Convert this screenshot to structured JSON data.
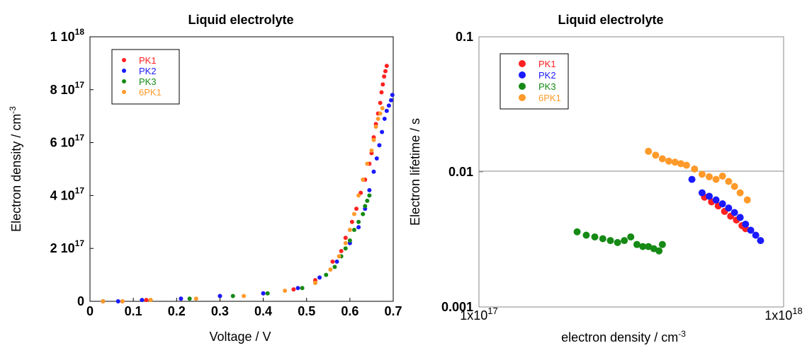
{
  "chart_data": [
    {
      "type": "scatter",
      "title": "Liquid electrolyte",
      "xlabel": "Voltage / V",
      "ylabel": "Electron density / cm",
      "ylabel_sup": "-3",
      "xlim": [
        0,
        0.7
      ],
      "ylim": [
        0,
        1e+18
      ],
      "x_ticks": [
        {
          "value": 0,
          "label": "0"
        },
        {
          "value": 0.1,
          "label": "0.1"
        },
        {
          "value": 0.2,
          "label": "0.2"
        },
        {
          "value": 0.3,
          "label": "0.3"
        },
        {
          "value": 0.4,
          "label": "0.4"
        },
        {
          "value": 0.5,
          "label": "0.5"
        },
        {
          "value": 0.6,
          "label": "0.6"
        },
        {
          "value": 0.7,
          "label": "0.7"
        }
      ],
      "y_ticks": [
        {
          "value": 0,
          "mant": "0",
          "exp": ""
        },
        {
          "value": 2e+17,
          "mant": "2 10",
          "exp": "17"
        },
        {
          "value": 4e+17,
          "mant": "4 10",
          "exp": "17"
        },
        {
          "value": 6e+17,
          "mant": "6 10",
          "exp": "17"
        },
        {
          "value": 8e+17,
          "mant": "8 10",
          "exp": "17"
        },
        {
          "value": 1e+18,
          "mant": "1 10",
          "exp": "18"
        }
      ],
      "legend_position": "top-left",
      "series": [
        {
          "name": "PK1",
          "color": "#ff2020",
          "x": [
            0.03,
            0.075,
            0.13,
            0.21,
            0.3,
            0.4,
            0.47,
            0.52,
            0.56,
            0.58,
            0.59,
            0.605,
            0.615,
            0.625,
            0.635,
            0.645,
            0.65,
            0.655,
            0.66,
            0.665,
            0.67,
            0.673,
            0.676,
            0.679,
            0.682,
            0.685
          ],
          "y": [
            0,
            0,
            5000000000000000.0,
            1e+16,
            2e+16,
            3e+16,
            4.5e+16,
            8e+16,
            1.5e+17,
            1.9e+17,
            2.4e+17,
            3e+17,
            3.5e+17,
            4.1e+17,
            4.6e+17,
            5.2e+17,
            5.6e+17,
            6.2e+17,
            6.7e+17,
            7.1e+17,
            7.5e+17,
            7.9e+17,
            8.2e+17,
            8.5e+17,
            8.7e+17,
            8.9e+17
          ]
        },
        {
          "name": "PK2",
          "color": "#1a1aff",
          "x": [
            0.03,
            0.065,
            0.12,
            0.21,
            0.3,
            0.4,
            0.48,
            0.53,
            0.57,
            0.6,
            0.62,
            0.635,
            0.645,
            0.655,
            0.662,
            0.668,
            0.674,
            0.68,
            0.685,
            0.69,
            0.695,
            0.698
          ],
          "y": [
            0,
            0,
            5000000000000000.0,
            1e+16,
            2e+16,
            3e+16,
            5e+16,
            9e+16,
            1.5e+17,
            2.2e+17,
            2.8e+17,
            3.5e+17,
            4.2e+17,
            4.9e+17,
            5.4e+17,
            5.9e+17,
            6.4e+17,
            6.9e+17,
            7.2e+17,
            7.4e+17,
            7.6e+17,
            7.8e+17
          ]
        },
        {
          "name": "PK3",
          "color": "#158a15",
          "x": [
            0.03,
            0.14,
            0.23,
            0.33,
            0.41,
            0.49,
            0.52,
            0.545,
            0.565,
            0.58,
            0.59,
            0.6,
            0.61,
            0.62,
            0.63,
            0.635,
            0.64,
            0.645
          ],
          "y": [
            0,
            5000000000000000.0,
            1e+16,
            2e+16,
            3e+16,
            5e+16,
            7e+16,
            1e+17,
            1.3e+17,
            1.7e+17,
            2e+17,
            2.3e+17,
            2.7e+17,
            3e+17,
            3.3e+17,
            3.6e+17,
            3.8e+17,
            4e+17
          ]
        },
        {
          "name": "6PK1",
          "color": "#ff9a2a",
          "x": [
            0.03,
            0.075,
            0.14,
            0.245,
            0.355,
            0.45,
            0.52,
            0.555,
            0.575,
            0.59,
            0.6,
            0.61,
            0.62,
            0.63,
            0.64,
            0.65,
            0.655,
            0.66,
            0.665,
            0.67,
            0.675
          ],
          "y": [
            0,
            0,
            5000000000000000.0,
            1e+16,
            2e+16,
            4e+16,
            7e+16,
            1.2e+17,
            1.7e+17,
            2.2e+17,
            2.7e+17,
            3.3e+17,
            4e+17,
            4.6e+17,
            5.2e+17,
            5.7e+17,
            6.1e+17,
            6.6e+17,
            6.9e+17,
            7.1e+17,
            7.3e+17
          ]
        }
      ]
    },
    {
      "type": "scatter",
      "title": "Liquid electrolyte",
      "xlabel": "electron density / cm",
      "xlabel_sup": "-3",
      "ylabel": "Electron lifetime / s",
      "x_scale": "log",
      "y_scale": "log",
      "xlim": [
        1e+17,
        1e+18
      ],
      "ylim": [
        0.001,
        0.1
      ],
      "grid": "horizontal at 0.01",
      "x_ticks": [
        {
          "value": 1e+17,
          "mant": "1x10",
          "exp": "17"
        },
        {
          "value": 1e+18,
          "mant": "1x10",
          "exp": "18"
        }
      ],
      "y_ticks": [
        {
          "value": 0.001,
          "label": "0.001"
        },
        {
          "value": 0.01,
          "label": "0.01"
        },
        {
          "value": 0.1,
          "label": "0.1"
        }
      ],
      "legend_position": "top-left",
      "series": [
        {
          "name": "PK1",
          "color": "#ff2020",
          "x": [
            5.5e+17,
            5.8e+17,
            6.1e+17,
            6.4e+17,
            6.7e+17,
            7e+17,
            7.3e+17,
            7.5e+17
          ],
          "y": [
            0.0065,
            0.006,
            0.0056,
            0.0051,
            0.0047,
            0.0044,
            0.004,
            0.0038
          ]
        },
        {
          "name": "PK2",
          "color": "#1a1aff",
          "x": [
            5e+17,
            5.4e+17,
            5.7e+17,
            6e+17,
            6.3e+17,
            6.6e+17,
            6.9e+17,
            7.2e+17,
            7.5e+17,
            7.8e+17,
            8.1e+17,
            8.4e+17
          ],
          "y": [
            0.0088,
            0.007,
            0.0066,
            0.0062,
            0.0058,
            0.0054,
            0.005,
            0.0046,
            0.0041,
            0.0037,
            0.0034,
            0.0031
          ]
        },
        {
          "name": "PK3",
          "color": "#158a15",
          "x": [
            2.1e+17,
            2.25e+17,
            2.4e+17,
            2.55e+17,
            2.7e+17,
            2.85e+17,
            3e+17,
            3.15e+17,
            3.3e+17,
            3.45e+17,
            3.6e+17,
            3.75e+17,
            3.9e+17,
            4e+17
          ],
          "y": [
            0.0036,
            0.0034,
            0.0033,
            0.0032,
            0.0031,
            0.003,
            0.0031,
            0.0033,
            0.0029,
            0.0028,
            0.0028,
            0.0027,
            0.0026,
            0.0029
          ]
        },
        {
          "name": "6PK1",
          "color": "#ff9a2a",
          "x": [
            3.6e+17,
            3.8e+17,
            4e+17,
            4.2e+17,
            4.4e+17,
            4.6e+17,
            4.8e+17,
            5.1e+17,
            5.4e+17,
            5.7e+17,
            6e+17,
            6.3e+17,
            6.6e+17,
            6.9e+17,
            7.2e+17,
            7.6e+17
          ],
          "y": [
            0.0142,
            0.0133,
            0.0125,
            0.012,
            0.0118,
            0.0115,
            0.0112,
            0.0105,
            0.0096,
            0.0092,
            0.0088,
            0.0093,
            0.0085,
            0.0078,
            0.007,
            0.0062
          ]
        }
      ]
    }
  ]
}
